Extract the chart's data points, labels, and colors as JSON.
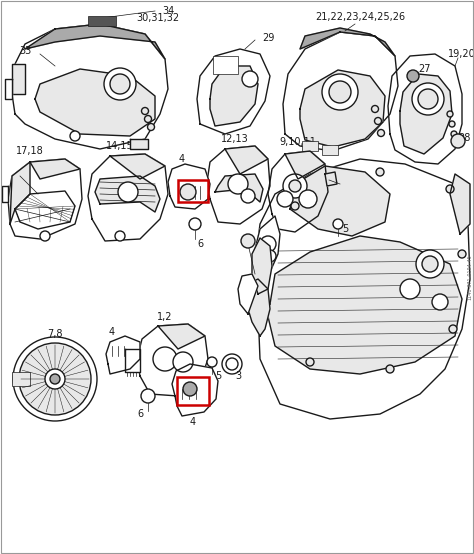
{
  "bg_color": "#ffffff",
  "line_color": "#1a1a1a",
  "red_color": "#cc0000",
  "gray_light": "#e8e8e8",
  "gray_mid": "#aaaaaa",
  "gray_dark": "#555555",
  "figsize": [
    4.74,
    5.54
  ],
  "dpi": 100,
  "lw_main": 1.0,
  "lw_thin": 0.5,
  "label_fontsize": 7.0,
  "side_text": "1140-871-0194-45"
}
